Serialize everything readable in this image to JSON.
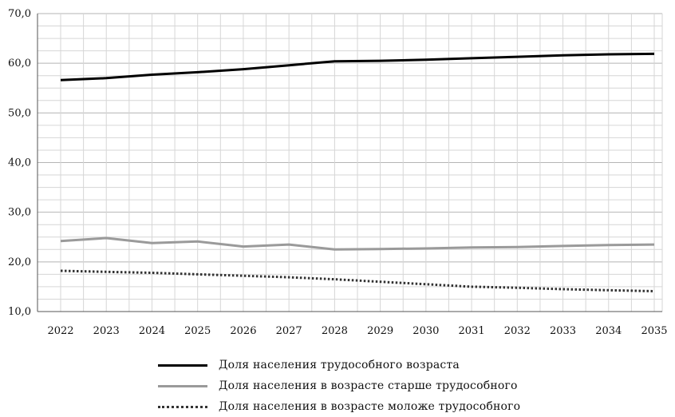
{
  "chart_data": {
    "type": "line",
    "title": "",
    "xlabel": "",
    "ylabel": "",
    "x": [
      "2022",
      "2023",
      "2024",
      "2025",
      "2026",
      "2027",
      "2028",
      "2029",
      "2030",
      "2031",
      "2032",
      "2033",
      "2034",
      "2035"
    ],
    "ylim": [
      10,
      70
    ],
    "yticks": [
      "10,0",
      "20,0",
      "30,0",
      "40,0",
      "50,0",
      "60,0",
      "70,0"
    ],
    "grid": true,
    "legend_position": "bottom",
    "series": [
      {
        "name": "Доля  населения  трудособного возраста",
        "color": "#000000",
        "style": "solid",
        "values": [
          56.6,
          57.0,
          57.7,
          58.2,
          58.8,
          59.6,
          60.4,
          60.5,
          60.7,
          61.0,
          61.3,
          61.6,
          61.8,
          61.9
        ]
      },
      {
        "name": "Доля  населения  в возрасте  старше  трудособного",
        "color": "#9a9a9a",
        "style": "solid",
        "values": [
          24.2,
          24.8,
          23.8,
          24.1,
          23.1,
          23.5,
          22.5,
          22.6,
          22.7,
          22.9,
          23.0,
          23.2,
          23.4,
          23.5
        ]
      },
      {
        "name": "Доля  населения  в возрасте  моложе  трудособного",
        "color": "#333333",
        "style": "dotted",
        "values": [
          18.2,
          18.0,
          17.8,
          17.5,
          17.2,
          16.9,
          16.5,
          16.0,
          15.5,
          15.0,
          14.8,
          14.5,
          14.3,
          14.1
        ]
      }
    ]
  }
}
